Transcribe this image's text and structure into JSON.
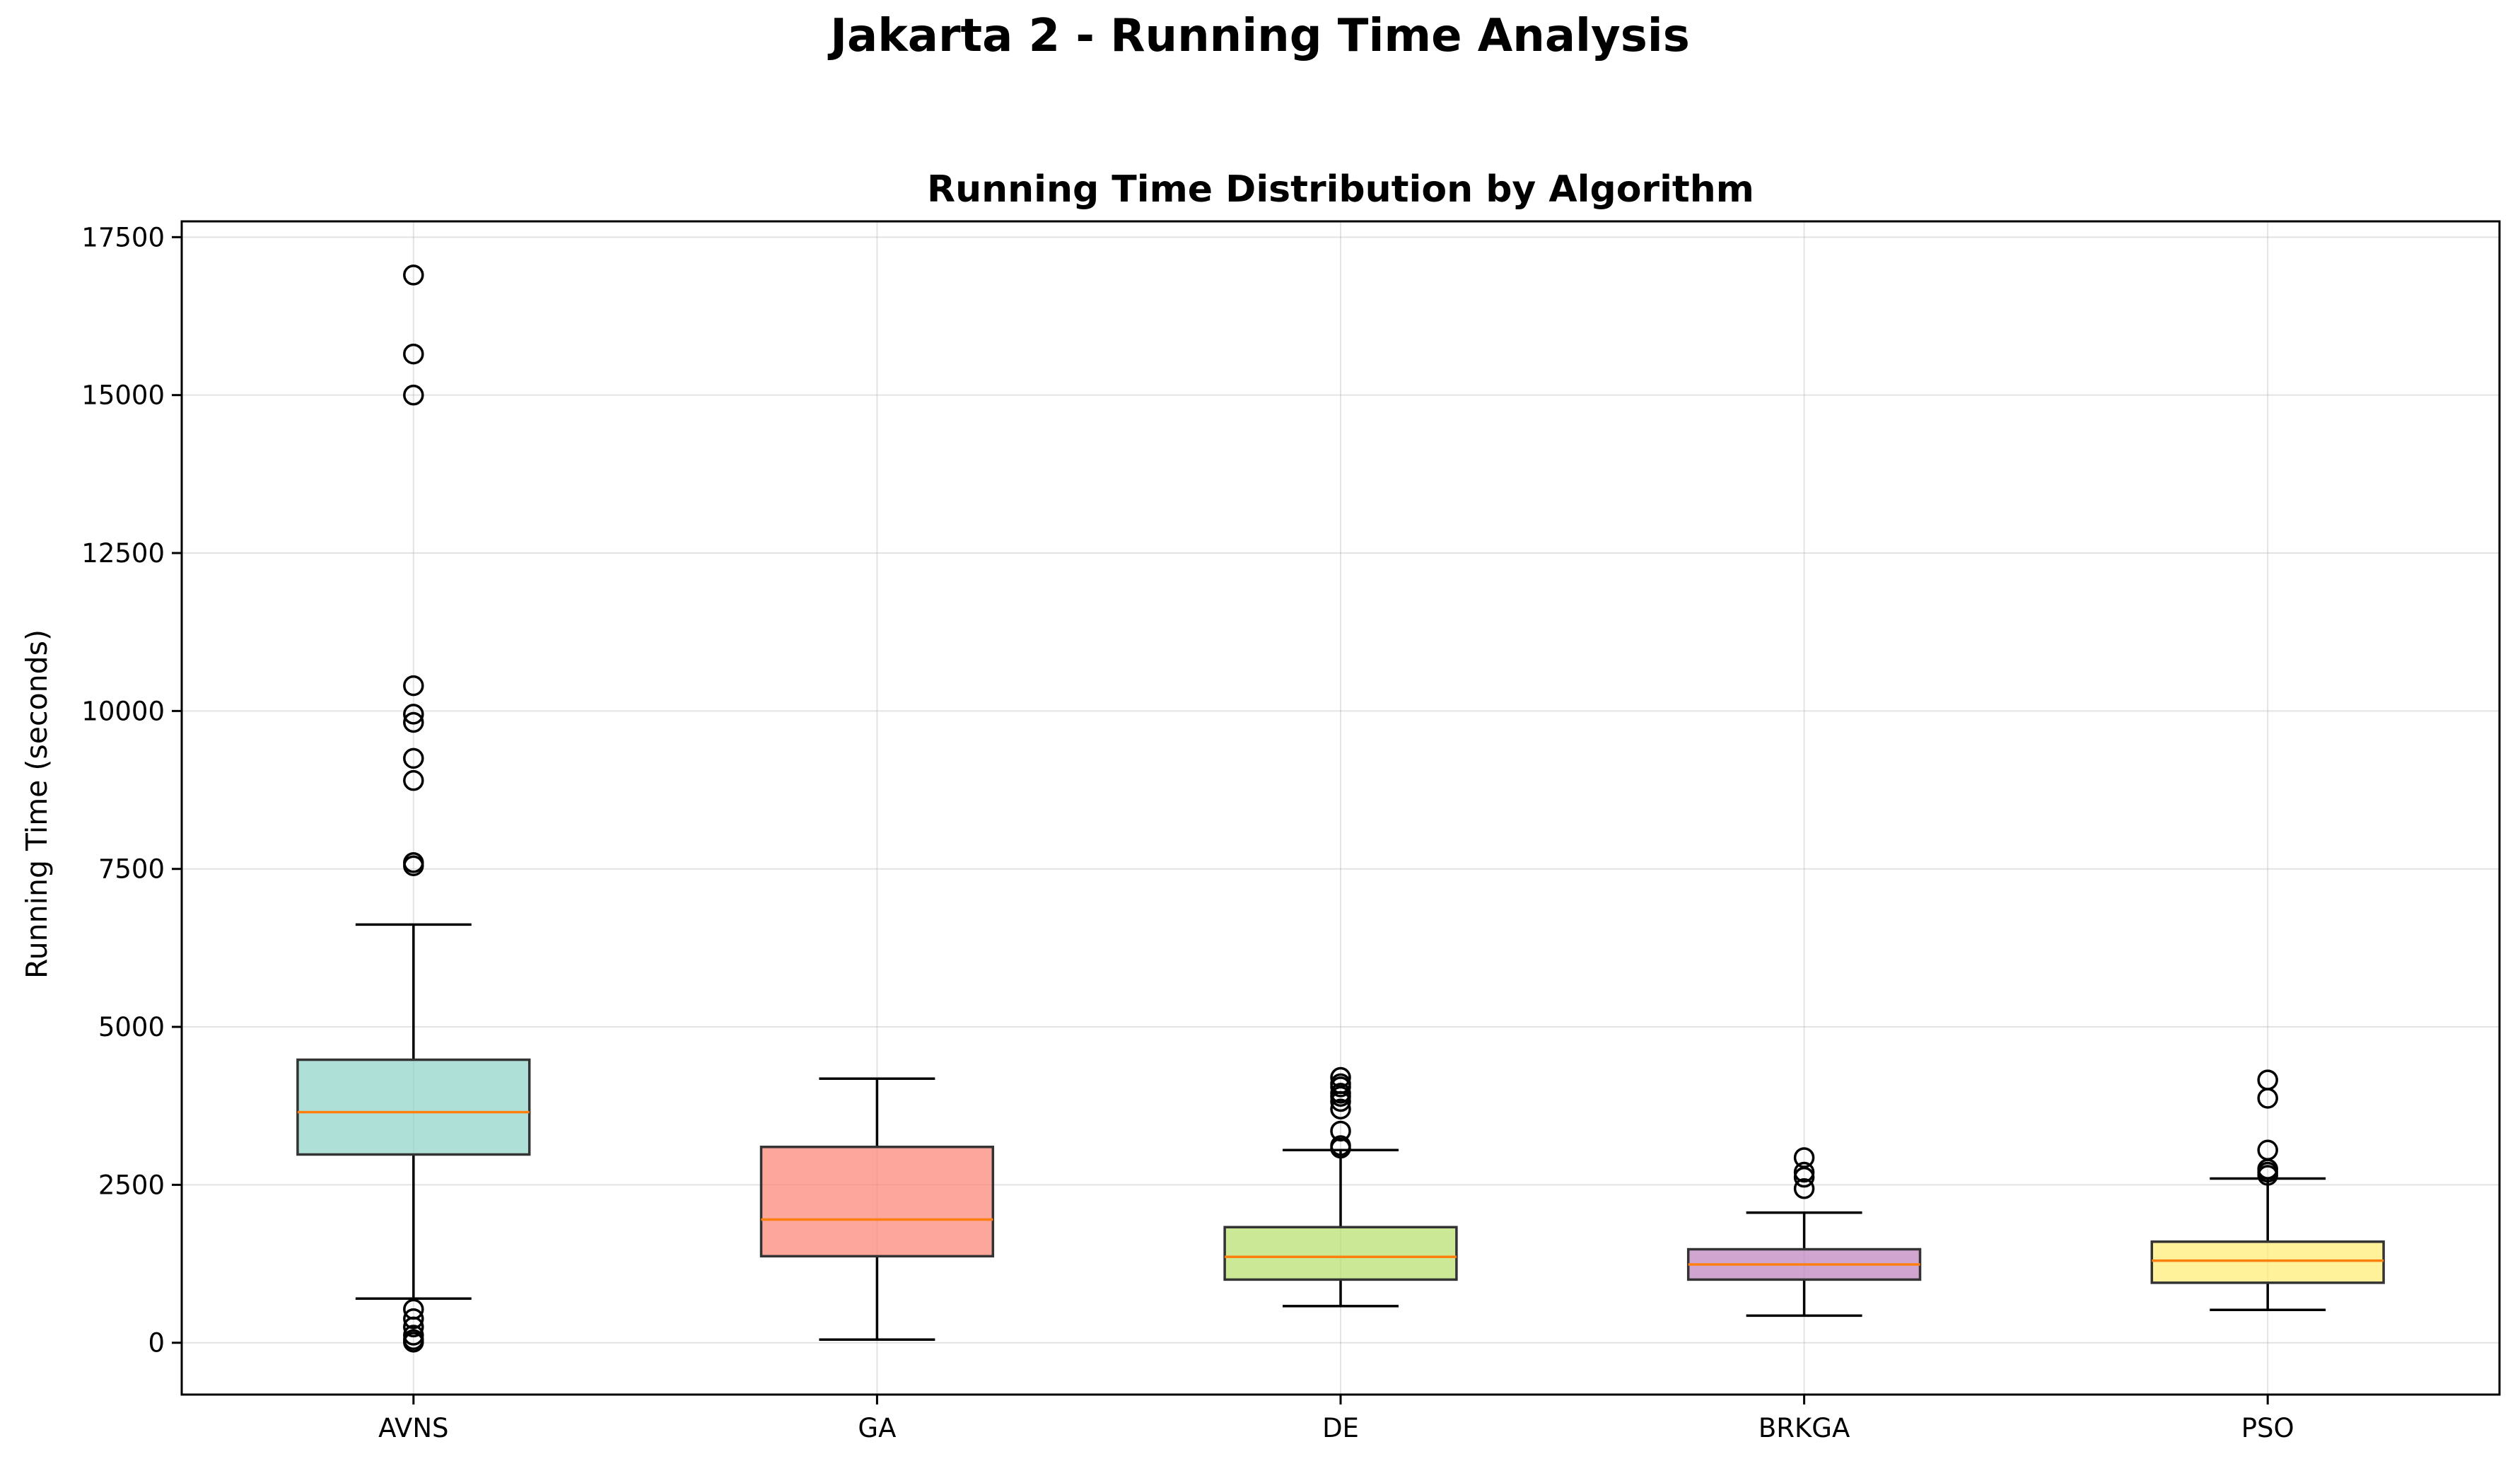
{
  "suptitle": "Jakarta 2 - Running Time Analysis",
  "chart_data": {
    "type": "box",
    "title": "Running Time Distribution by Algorithm",
    "xlabel": "",
    "ylabel": "Running Time (seconds)",
    "ylim": [
      -820,
      17750
    ],
    "yticks": [
      0,
      2500,
      5000,
      7500,
      10000,
      12500,
      15000,
      17500
    ],
    "grid": true,
    "categories": [
      "AVNS",
      "GA",
      "DE",
      "BRKGA",
      "PSO"
    ],
    "colors": [
      "#8dd3c7",
      "#fb8072",
      "#b3de69",
      "#bc80bd",
      "#ffed6f"
    ],
    "median_color": "#ff7f0e",
    "boxes": [
      {
        "name": "AVNS",
        "whisker_low": 700,
        "q1": 2980,
        "median": 3650,
        "q3": 4480,
        "whisker_high": 6620,
        "outliers": [
          16900,
          15650,
          15000,
          10400,
          9950,
          9820,
          9250,
          8900,
          7600,
          7550,
          530,
          380,
          250,
          120,
          50,
          10
        ]
      },
      {
        "name": "GA",
        "whisker_low": 50,
        "q1": 1370,
        "median": 1950,
        "q3": 3100,
        "whisker_high": 4180,
        "outliers": []
      },
      {
        "name": "DE",
        "whisker_low": 580,
        "q1": 1000,
        "median": 1360,
        "q3": 1830,
        "whisker_high": 3050,
        "outliers": [
          4200,
          4100,
          4050,
          3950,
          3900,
          3820,
          3700,
          3350,
          3120,
          3080
        ]
      },
      {
        "name": "BRKGA",
        "whisker_low": 430,
        "q1": 1000,
        "median": 1240,
        "q3": 1480,
        "whisker_high": 2060,
        "outliers": [
          2930,
          2700,
          2620,
          2440
        ]
      },
      {
        "name": "PSO",
        "whisker_low": 520,
        "q1": 950,
        "median": 1300,
        "q3": 1600,
        "whisker_high": 2600,
        "outliers": [
          4160,
          3870,
          3050,
          2750,
          2700,
          2650
        ]
      }
    ]
  }
}
